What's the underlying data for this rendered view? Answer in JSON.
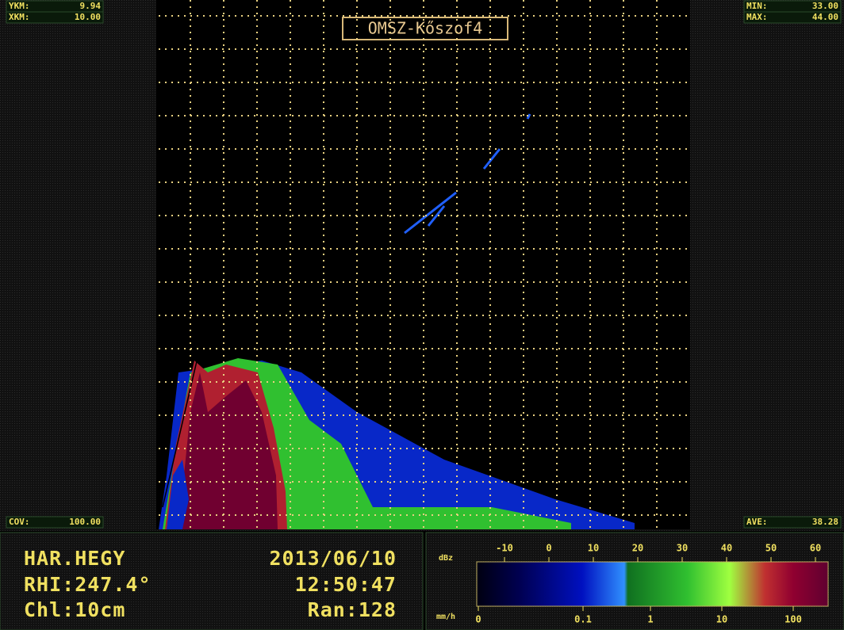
{
  "display": {
    "title": "OMSZ-Kőszof4",
    "top_left": [
      {
        "label": "YKM:",
        "value": "9.94"
      },
      {
        "label": "XKM:",
        "value": "10.00"
      }
    ],
    "top_right": [
      {
        "label": "MIN:",
        "value": "33.00"
      },
      {
        "label": "MAX:",
        "value": "44.00"
      }
    ],
    "bottom_left": {
      "label": "COV:",
      "value": "100.00"
    },
    "bottom_right": {
      "label": "AVE:",
      "value": "38.28"
    }
  },
  "info": {
    "station": "HAR.HEGY",
    "date": "2013/06/10",
    "scan": "RHI:247.4°",
    "time": "12:50:47",
    "channel": "Chl:10cm",
    "range": "Ran:128"
  },
  "colorbar": {
    "unit_top": "dBz",
    "ticks_top": [
      "-10",
      "0",
      "10",
      "20",
      "30",
      "40",
      "50",
      "60"
    ],
    "unit_bottom": "mm/h",
    "ticks_bottom": [
      "0",
      "0.1",
      "1",
      "10",
      "100"
    ]
  }
}
